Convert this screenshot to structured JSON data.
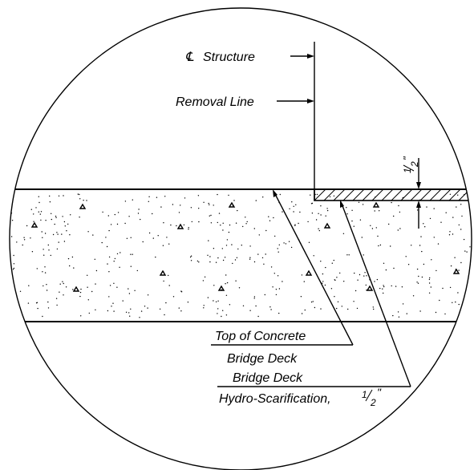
{
  "labels": {
    "centerline_symbol": "℄",
    "centerline": "Structure",
    "removal_line": "Removal Line",
    "top_of_concrete_line1": "Top of Concrete",
    "top_of_concrete_line2": "Bridge Deck",
    "hydro_line1": "Bridge Deck",
    "hydro_line2": "Hydro-Scarification,",
    "dim_numerator": "1",
    "dim_denominator": "2",
    "inch_mark": "\""
  }
}
